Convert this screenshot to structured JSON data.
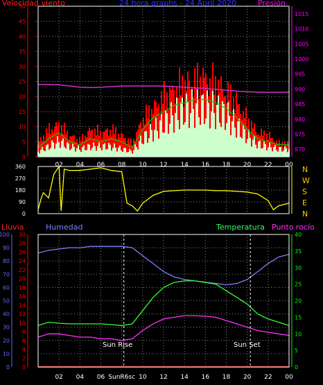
{
  "header": {
    "wind_label": "Velocidad viento",
    "title": "24 hora graphs - 24 April 2020",
    "pressure_label": "Presión"
  },
  "bottom_header": {
    "rain_label": "Lluvia",
    "humidity_label": "Humedad",
    "temperature_label": "Temperatura",
    "dewpoint_label": "Punto rocío"
  },
  "compass": [
    "N",
    "W",
    "S",
    "E",
    "N"
  ],
  "annotations": {
    "sunrise": "Sun Rise",
    "sunset": "Sun Set",
    "sunrise_tick": "SunR6sc"
  },
  "colors": {
    "wind_gust": "#ff0000",
    "wind_avg": "#ccffcc",
    "wind_avg_line": "#00cc00",
    "pressure": "#cc33cc",
    "direction": "#ffff00",
    "humidity": "#8080ff",
    "temperature": "#33ff33",
    "dewpoint": "#ff33ff",
    "rain": "#ff0000",
    "frame": "#ffffff",
    "grid": "#888888",
    "axis_pressure": "#ff00ff",
    "axis_dir": "#ffff00",
    "axis_humidity": "#6666ff",
    "axis_temp": "#00ff00",
    "axis_rain": "#ff0000"
  },
  "chart_data": [
    {
      "type": "area",
      "title": "24 hora graphs - 24 April 2020",
      "ylabel": "Velocidad viento",
      "y2label": "Presión",
      "x_ticks": [
        "02",
        "04",
        "06",
        "08",
        "10",
        "12",
        "14",
        "16",
        "18",
        "20",
        "22",
        "00"
      ],
      "ylim": [
        0,
        50
      ],
      "y_ticks": [
        0,
        5,
        10,
        15,
        20,
        25,
        30,
        35,
        40,
        45,
        50
      ],
      "y2lim": [
        967.5,
        1017.5
      ],
      "y2_ticks": [
        970,
        975,
        980,
        985,
        990,
        995,
        1000,
        1005,
        1010,
        1015
      ],
      "x": [
        0,
        1,
        2,
        3,
        4,
        5,
        6,
        7,
        8,
        9,
        10,
        11,
        12,
        13,
        14,
        15,
        16,
        17,
        18,
        19,
        20,
        21,
        22,
        23,
        24
      ],
      "series": [
        {
          "name": "gust",
          "values": [
            5,
            10,
            12,
            8,
            6,
            10,
            9,
            10,
            8,
            5,
            14,
            18,
            22,
            25,
            27,
            28,
            29,
            27,
            24,
            20,
            14,
            9,
            8,
            5,
            5
          ]
        },
        {
          "name": "average",
          "values": [
            2,
            4,
            6,
            4,
            3,
            4,
            4,
            4,
            3,
            2,
            7,
            10,
            13,
            16,
            18,
            19,
            19,
            18,
            16,
            12,
            8,
            5,
            4,
            3,
            3
          ]
        },
        {
          "name": "average_line",
          "values": [
            3,
            6,
            8,
            5,
            4,
            6,
            5,
            6,
            5,
            3,
            9,
            13,
            15,
            17,
            18,
            19,
            19,
            18,
            16,
            13,
            9,
            6,
            5,
            4,
            4
          ]
        },
        {
          "name": "Presión",
          "values": [
            991.5,
            991.5,
            991.4,
            991,
            990.6,
            990.5,
            990.6,
            990.8,
            991,
            991,
            991,
            991,
            991,
            990.8,
            990.6,
            990.4,
            990.2,
            989.9,
            989.6,
            989.3,
            989.1,
            989,
            988.9,
            988.9,
            989
          ]
        }
      ]
    },
    {
      "type": "line",
      "ylabel": "",
      "ylim": [
        0,
        360
      ],
      "y_ticks": [
        0,
        90,
        180,
        270,
        360
      ],
      "x": [
        0,
        0.3,
        0.5,
        1,
        1.5,
        2,
        2.2,
        2.5,
        3,
        3.5,
        4,
        5,
        6,
        7,
        8,
        8.5,
        9,
        9.5,
        10,
        11,
        12,
        13,
        14,
        15,
        16,
        17,
        18,
        19,
        20,
        21,
        22,
        22.5,
        23,
        24
      ],
      "series": [
        {
          "name": "direction",
          "values": [
            30,
            120,
            160,
            120,
            300,
            360,
            20,
            340,
            330,
            330,
            330,
            340,
            350,
            330,
            320,
            80,
            60,
            20,
            80,
            140,
            170,
            175,
            180,
            180,
            180,
            175,
            175,
            170,
            165,
            150,
            100,
            30,
            60,
            80
          ]
        }
      ]
    },
    {
      "type": "line",
      "ylabel": "Humedad",
      "x_ticks": [
        "02",
        "04",
        "06",
        "SunR6sc",
        "10",
        "12",
        "14",
        "16",
        "18",
        "20",
        "22",
        "00"
      ],
      "ylim": [
        0,
        100
      ],
      "y_ticks": [
        0,
        10,
        20,
        30,
        40,
        50,
        60,
        70,
        80,
        90,
        100
      ],
      "y2lim": [
        0,
        30
      ],
      "y2_ticks": [
        0,
        2,
        4,
        6,
        8,
        10,
        12,
        14,
        16,
        18,
        20,
        22,
        24,
        26,
        28,
        30
      ],
      "y3lim": [
        0,
        40
      ],
      "y3_ticks": [
        0,
        5,
        10,
        15,
        20,
        25,
        30,
        35,
        40
      ],
      "x": [
        0,
        1,
        2,
        3,
        4,
        5,
        6,
        7,
        8,
        9,
        10,
        11,
        12,
        13,
        14,
        15,
        16,
        17,
        18,
        19,
        20,
        21,
        22,
        23,
        24
      ],
      "series": [
        {
          "name": "Humedad",
          "values": [
            86,
            88,
            89,
            90,
            90,
            91,
            91,
            91,
            91,
            90,
            84,
            78,
            72,
            68,
            66,
            65,
            64,
            63,
            62,
            63,
            66,
            72,
            78,
            83,
            85
          ]
        },
        {
          "name": "Temperatura",
          "values": [
            12.5,
            13.5,
            13.2,
            13,
            13,
            13,
            13,
            12.8,
            12.5,
            13,
            17,
            21,
            24,
            25.5,
            26,
            26,
            25.5,
            25,
            23,
            21,
            19,
            16,
            14.5,
            13.5,
            12.5
          ]
        },
        {
          "name": "Punto rocío",
          "values": [
            9,
            10,
            10,
            9.5,
            9,
            9,
            8.5,
            8.5,
            8,
            8.5,
            11,
            13,
            14.5,
            15,
            15.5,
            15.5,
            15.3,
            15,
            14,
            13,
            12,
            11,
            10.5,
            10,
            9.5
          ]
        },
        {
          "name": "Lluvia",
          "values": [
            0,
            0,
            0,
            0,
            0,
            0,
            0,
            0,
            0,
            0,
            0,
            0,
            0,
            0,
            0,
            0,
            0,
            0,
            0,
            0,
            0,
            0,
            0,
            0,
            0
          ]
        }
      ]
    }
  ]
}
